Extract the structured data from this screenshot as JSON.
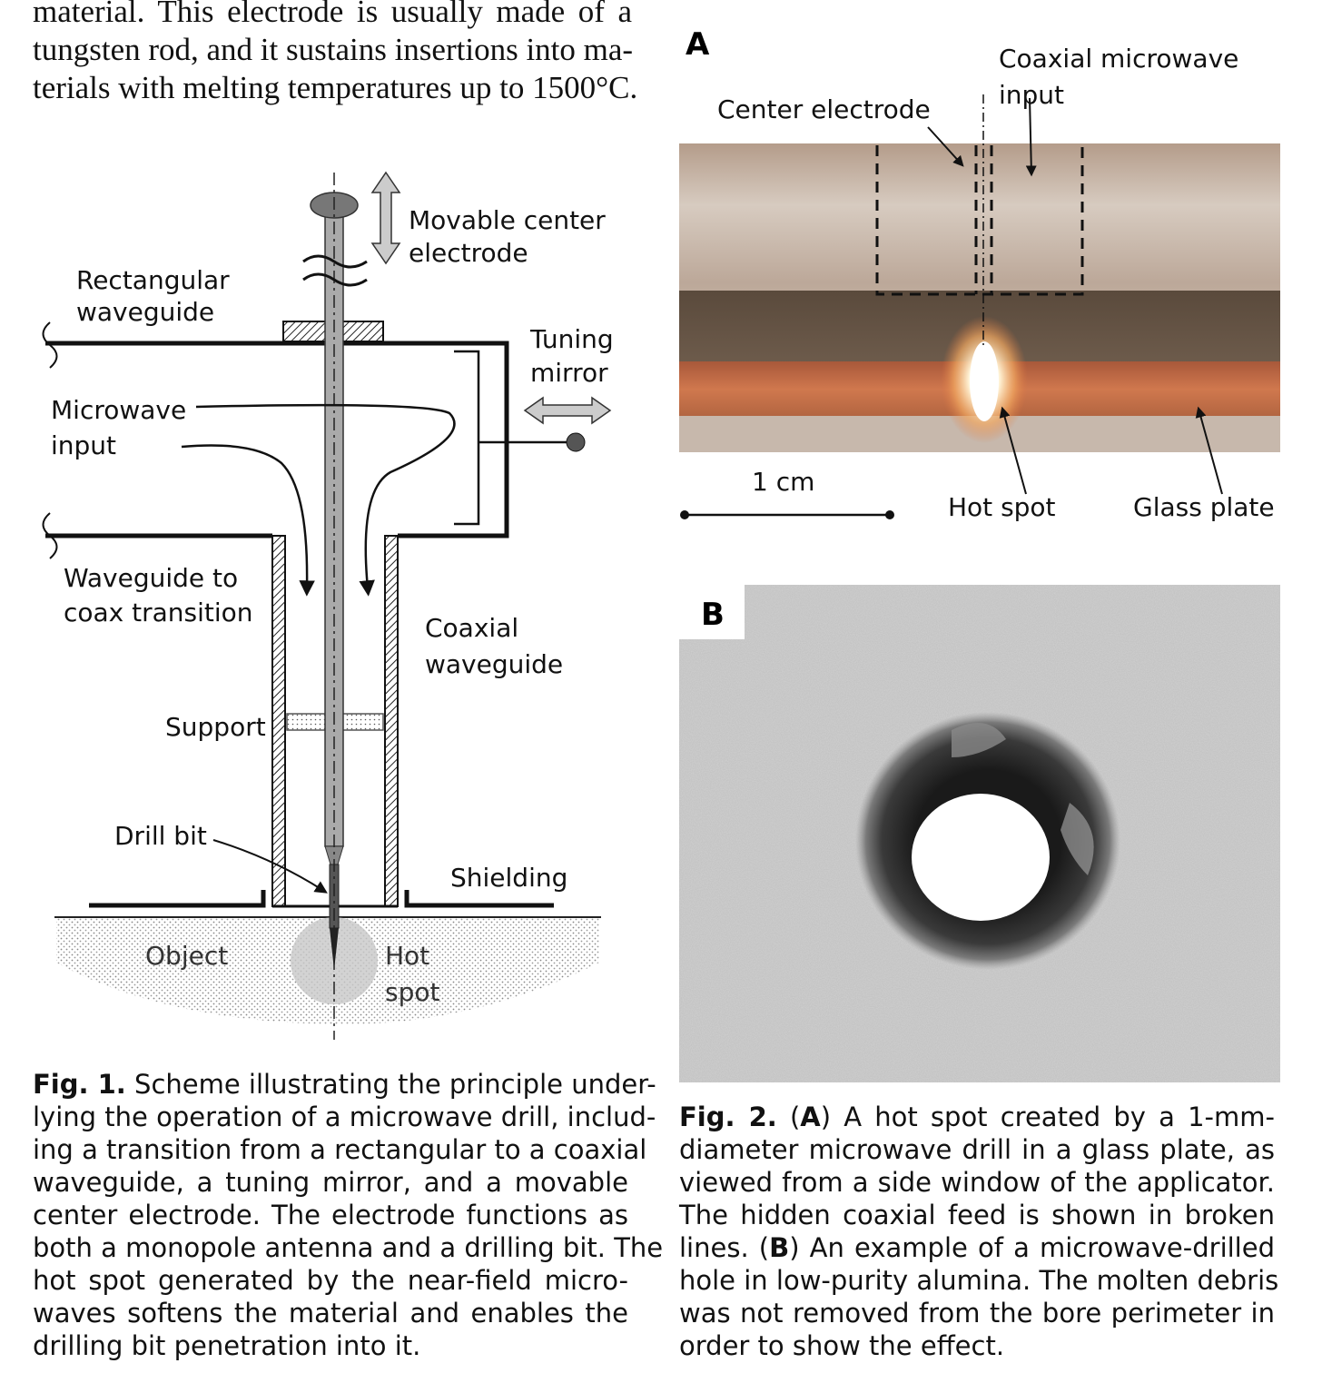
{
  "intro_text": {
    "lines": [
      "material. This electrode is usually made of a",
      "tungsten rod, and it sustains insertions into ma-",
      "terials with melting temperatures up to 1500°C."
    ]
  },
  "figure1": {
    "labels": {
      "movable_center_electrode_1": "Movable center",
      "movable_center_electrode_2": "electrode",
      "rectangular_waveguide_1": "Rectangular",
      "rectangular_waveguide_2": "waveguide",
      "tuning_mirror_1": "Tuning",
      "tuning_mirror_2": "mirror",
      "microwave_input_1": "Microwave",
      "microwave_input_2": "input",
      "waveguide_to_coax_1": "Waveguide to",
      "waveguide_to_coax_2": "coax transition",
      "coaxial_waveguide_1": "Coaxial",
      "coaxial_waveguide_2": "waveguide",
      "support": "Support",
      "drill_bit": "Drill bit",
      "shielding": "Shielding",
      "object": "Object",
      "hot_spot_1": "Hot",
      "hot_spot_2": "spot"
    },
    "caption_label": "Fig. 1.",
    "caption_lines": [
      "Scheme illustrating the principle under-",
      "lying the operation of a microwave drill, includ-",
      "ing a transition from a rectangular to a coaxial",
      "waveguide, a tuning mirror, and a movable",
      "center electrode. The electrode functions as",
      "both a monopole antenna and a drilling bit. The",
      "hot spot generated by the near-field micro-",
      "waves softens the material and enables the",
      "drilling bit penetration into it."
    ]
  },
  "figure2": {
    "panel_a": {
      "letter": "A",
      "coaxial_microwave_1": "Coaxial microwave",
      "coaxial_microwave_2": "input",
      "center_electrode": "Center electrode",
      "scale": "1 cm",
      "hot_spot": "Hot spot",
      "glass_plate": "Glass plate"
    },
    "panel_b": {
      "letter": "B"
    },
    "caption_label": "Fig. 2.",
    "caption_lines": [
      {
        "parts": [
          {
            "t": "Fig. 2.",
            "b": true
          },
          {
            "t": " (",
            "b": false
          },
          {
            "t": "A",
            "b": true
          },
          {
            "t": ") A hot spot created by a 1-mm-",
            "b": false
          }
        ]
      },
      {
        "parts": [
          {
            "t": "diameter microwave drill in a glass plate, as",
            "b": false
          }
        ]
      },
      {
        "parts": [
          {
            "t": "viewed from a side window of the applicator.",
            "b": false
          }
        ]
      },
      {
        "parts": [
          {
            "t": "The hidden coaxial feed is shown in broken",
            "b": false
          }
        ]
      },
      {
        "parts": [
          {
            "t": "lines. (",
            "b": false
          },
          {
            "t": "B",
            "b": true
          },
          {
            "t": ") An example of a microwave-drilled",
            "b": false
          }
        ]
      },
      {
        "parts": [
          {
            "t": "hole in low-purity alumina. The molten debris",
            "b": false
          }
        ]
      },
      {
        "parts": [
          {
            "t": "was not removed from the bore perimeter in",
            "b": false
          }
        ]
      },
      {
        "parts": [
          {
            "t": "order to show the effect.",
            "b": false
          }
        ]
      }
    ]
  }
}
